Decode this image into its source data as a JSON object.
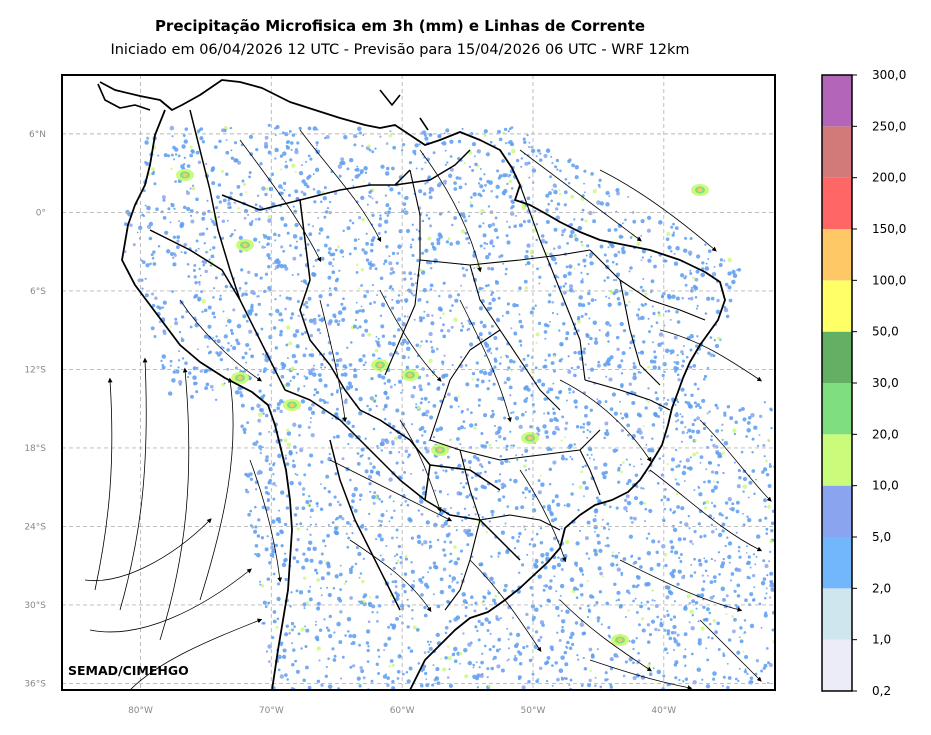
{
  "title": "Precipitação Microfisica em 3h (mm) e Linhas de Corrente",
  "subtitle": "Iniciado em 06/04/2026 12 UTC - Previsão para 15/04/2026 06 UTC - WRF 12km",
  "credit": "SEMAD/CIMEHGO",
  "lat_ticks": [
    {
      "label": "6°N",
      "lat": 6
    },
    {
      "label": "0°",
      "lat": 0
    },
    {
      "label": "6°S",
      "lat": -6
    },
    {
      "label": "12°S",
      "lat": -12
    },
    {
      "label": "18°S",
      "lat": -18
    },
    {
      "label": "24°S",
      "lat": -24
    },
    {
      "label": "30°S",
      "lat": -30
    },
    {
      "label": "36°S",
      "lat": -36
    }
  ],
  "lon_ticks": [
    {
      "label": "80°W",
      "lon": -80
    },
    {
      "label": "70°W",
      "lon": -70
    },
    {
      "label": "60°W",
      "lon": -60
    },
    {
      "label": "50°W",
      "lon": -50
    },
    {
      "label": "40°W",
      "lon": -40
    }
  ],
  "extent": {
    "lon_min": -86,
    "lon_max": -31.5,
    "lat_min": -36.5,
    "lat_max": 10.5
  },
  "colorbar": {
    "labels": [
      "0,2",
      "1,0",
      "2,0",
      "5,0",
      "10,0",
      "20,0",
      "30,0",
      "50,0",
      "100,0",
      "150,0",
      "200,0",
      "250,0",
      "300,0"
    ],
    "colors": [
      "#ececf9",
      "#cfe6ef",
      "#72b6fb",
      "#8aa4ef",
      "#cbfb7a",
      "#7fdf7f",
      "#63af63",
      "#ffff66",
      "#ffc866",
      "#ff6666",
      "#d27a7a",
      "#b366b9"
    ]
  }
}
